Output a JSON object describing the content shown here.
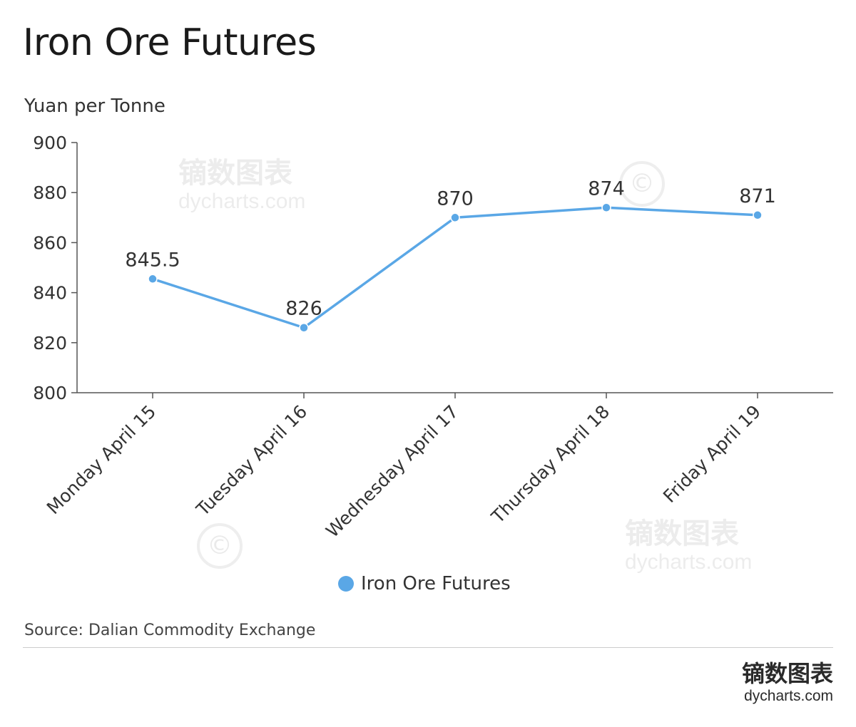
{
  "title": "Iron Ore Futures",
  "unit": "Yuan per Tonne",
  "source": "Source: Dalian Commodity Exchange",
  "brand": {
    "name": "镝数图表",
    "url": "dycharts.com"
  },
  "chart_data": {
    "type": "line",
    "title": "Iron Ore Futures",
    "ylabel": "Yuan per Tonne",
    "xlabel": "",
    "categories": [
      "Monday April 15",
      "Tuesday April 16",
      "Wednesday April 17",
      "Thursday April 18",
      "Friday April 19"
    ],
    "series": [
      {
        "name": "Iron Ore Futures",
        "values": [
          845.5,
          826,
          870,
          874,
          871
        ],
        "labels": [
          "845.5",
          "826",
          "870",
          "874",
          "871"
        ],
        "color": "#5aa7e6"
      }
    ],
    "ylim": [
      800,
      900
    ],
    "yticks": [
      "800",
      "820",
      "840",
      "860",
      "880",
      "900"
    ],
    "grid": false,
    "legend": "bottom-center"
  },
  "colors": {
    "series": "#5aa7e6",
    "axis": "#555555"
  }
}
